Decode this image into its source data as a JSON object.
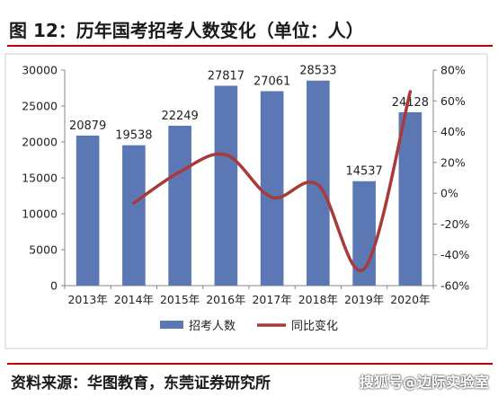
{
  "title": "图 12：历年国考招考人数变化（单位：人）",
  "source": "资料来源：华图教育，东莞证券研究所",
  "watermark": "搜狐号@边际实验室",
  "colors": {
    "bar": "#5b78b5",
    "line": "#a83a3a",
    "rule": "#c00000"
  },
  "chart_data": {
    "type": "bar+line",
    "categories": [
      "2013年",
      "2014年",
      "2015年",
      "2016年",
      "2017年",
      "2018年",
      "2019年",
      "2020年"
    ],
    "series": [
      {
        "name": "招考人数",
        "type": "bar",
        "axis": "left",
        "values": [
          20879,
          19538,
          22249,
          27817,
          27061,
          28533,
          14537,
          24128
        ],
        "labels": [
          "20879",
          "19538",
          "22249",
          "27817",
          "27061",
          "28533",
          "14537",
          "24128"
        ]
      },
      {
        "name": "同比变化",
        "type": "line",
        "axis": "right",
        "values": [
          null,
          -6.4,
          13.9,
          25.0,
          -2.7,
          5.4,
          -49.1,
          66.0
        ]
      }
    ],
    "left_axis": {
      "min": 0,
      "max": 30000,
      "step": 5000,
      "ticks": [
        "0",
        "5000",
        "10000",
        "15000",
        "20000",
        "25000",
        "30000"
      ]
    },
    "right_axis": {
      "min": -60,
      "max": 80,
      "step": 20,
      "ticks": [
        "-60%",
        "-40%",
        "-20%",
        "0%",
        "20%",
        "40%",
        "60%",
        "80%"
      ]
    },
    "grid": false,
    "legend": "bottom"
  }
}
